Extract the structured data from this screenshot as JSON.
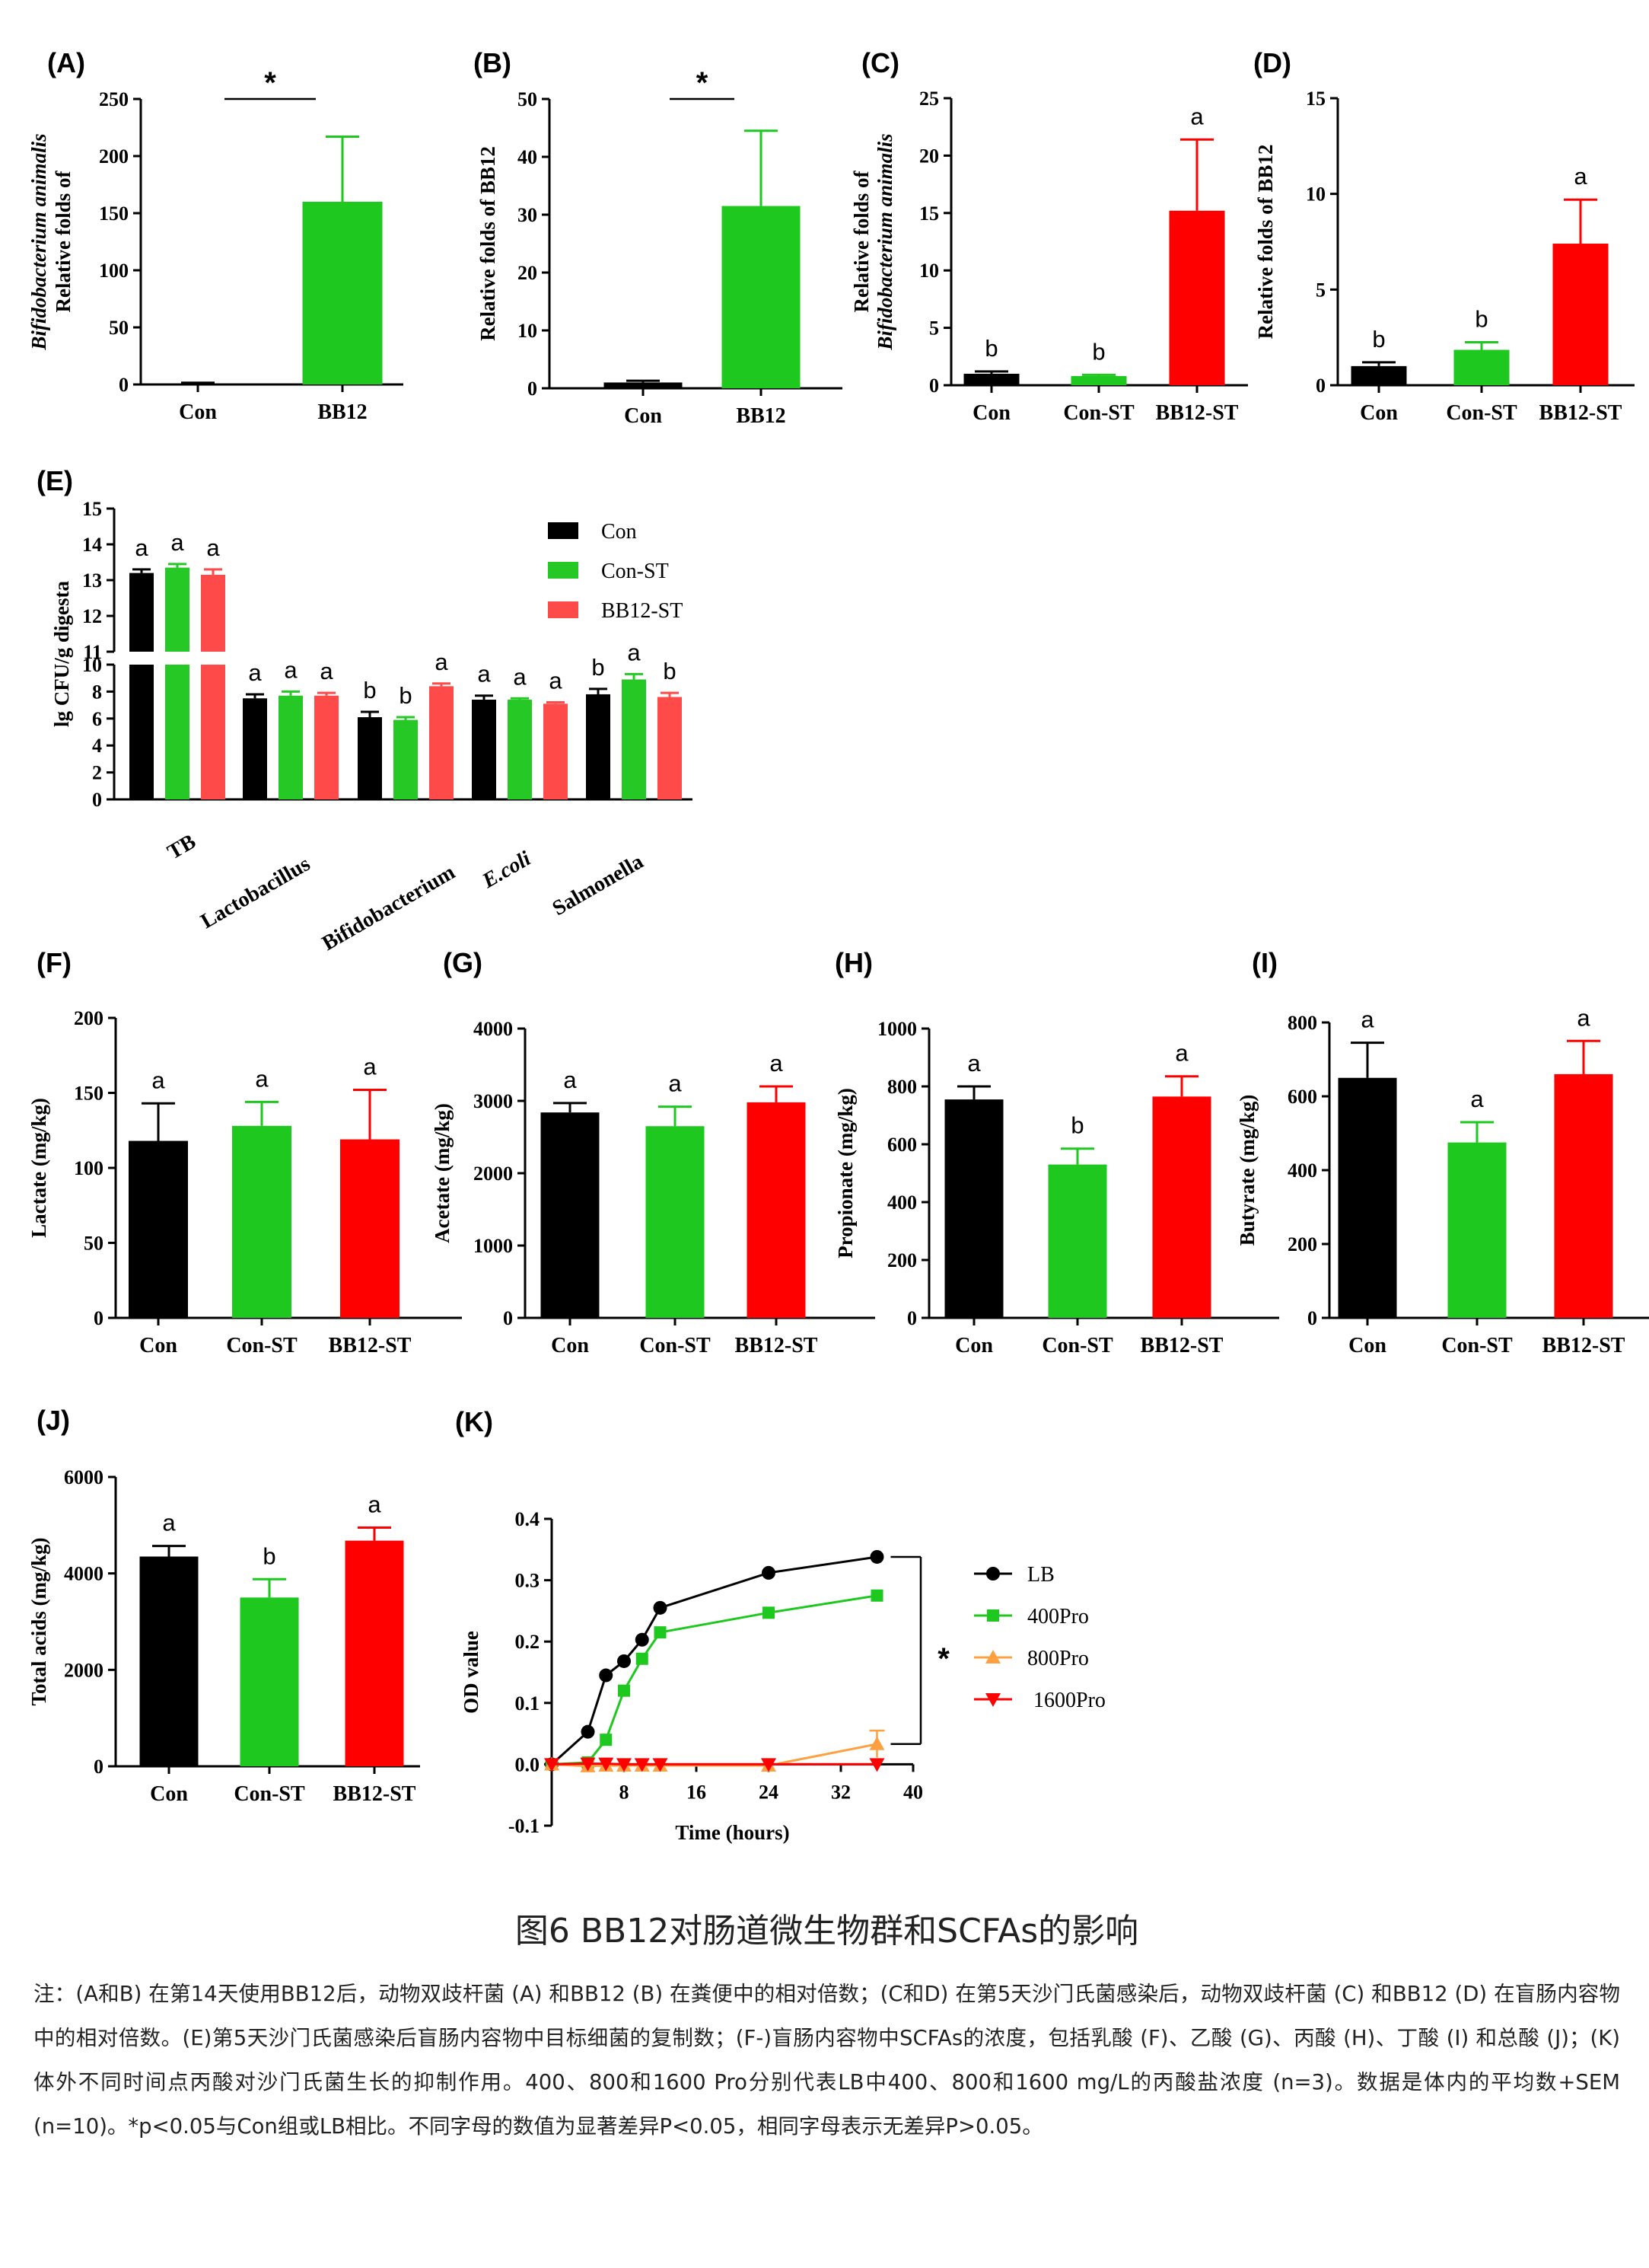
{
  "caption": {
    "title": "图6 BB12对肠道微生物群和SCFAs的影响",
    "note": "注：(A和B) 在第14天使用BB12后，动物双歧杆菌 (A) 和BB12 (B) 在粪便中的相对倍数；(C和D) 在第5天沙门氏菌感染后，动物双歧杆菌 (C) 和BB12 (D) 在盲肠内容物中的相对倍数。(E)第5天沙门氏菌感染后盲肠内容物中目标细菌的复制数；(F-)盲肠内容物中SCFAs的浓度，包括乳酸 (F)、乙酸 (G)、丙酸 (H)、丁酸 (I) 和总酸 (J)；(K) 体外不同时间点丙酸对沙门氏菌生长的抑制作用。400、800和1600 Pro分别代表LB中400、800和1600 mg/L的丙酸盐浓度 (n=3)。数据是体内的平均数+SEM (n=10)。*p<0.05与Con组或LB相比。不同字母的数值为显著差异P<0.05，相同字母表示无差异P>0.05。"
  },
  "colors": {
    "Con": "#000000",
    "Con-ST": "#1ec81e",
    "BB12-ST": "#ff0000",
    "BB12": "#1ec81e",
    "Con-ST-light": "#26c826",
    "BB12-ST-light": "#ff4a4a",
    "400Pro": "#1ec81e",
    "800Pro": "#ffa040",
    "1600Pro": "#ff0000",
    "LB": "#000000"
  },
  "chart_data": [
    {
      "id": "A",
      "label": "(A)",
      "type": "bar",
      "categories": [
        "Con",
        "BB12"
      ],
      "values": [
        1,
        160
      ],
      "errors": [
        0.5,
        57
      ],
      "ylim": [
        0,
        250
      ],
      "yticks": [
        0,
        50,
        100,
        150,
        200,
        250
      ],
      "ylabel_lines": [
        "Relative folds of",
        "Bifidobacterium animalis"
      ],
      "significance": "*",
      "letters": []
    },
    {
      "id": "B",
      "label": "(B)",
      "type": "bar",
      "categories": [
        "Con",
        "BB12"
      ],
      "values": [
        1,
        31.5
      ],
      "errors": [
        0.3,
        13
      ],
      "ylim": [
        0,
        50
      ],
      "yticks": [
        0,
        10,
        20,
        30,
        40,
        50
      ],
      "ylabel_lines": [
        "Relative  folds of BB12"
      ],
      "significance": "*",
      "letters": []
    },
    {
      "id": "C",
      "label": "(C)",
      "type": "bar",
      "categories": [
        "Con",
        "Con-ST",
        "BB12-ST"
      ],
      "values": [
        1,
        0.8,
        15.2
      ],
      "errors": [
        0.2,
        0.1,
        6.2
      ],
      "ylim": [
        0,
        25
      ],
      "yticks": [
        0,
        5,
        10,
        15,
        20,
        25
      ],
      "ylabel_lines": [
        "Relative   folds of",
        "Bifidobacterium animalis"
      ],
      "letters": [
        "b",
        "b",
        "a"
      ]
    },
    {
      "id": "D",
      "label": "(D)",
      "type": "bar",
      "categories": [
        "Con",
        "Con-ST",
        "BB12-ST"
      ],
      "values": [
        1,
        1.85,
        7.4
      ],
      "errors": [
        0.2,
        0.4,
        2.3
      ],
      "ylim": [
        0,
        15
      ],
      "yticks": [
        0,
        5,
        10,
        15
      ],
      "ylabel_lines": [
        "Relative   folds of BB12"
      ],
      "letters": [
        "b",
        "b",
        "a"
      ]
    },
    {
      "id": "E",
      "label": "(E)",
      "type": "bar",
      "categories": [
        "TB",
        "Lactobacillus",
        "Bifidobacterium",
        "E.coli",
        "Salmonella"
      ],
      "series": [
        {
          "name": "Con",
          "values": [
            13.2,
            7.5,
            6.1,
            7.4,
            7.8
          ],
          "errors": [
            0.1,
            0.3,
            0.4,
            0.3,
            0.4
          ],
          "letters": [
            "a",
            "a",
            "b",
            "a",
            "b"
          ]
        },
        {
          "name": "Con-ST",
          "values": [
            13.35,
            7.7,
            5.9,
            7.4,
            8.9
          ],
          "errors": [
            0.1,
            0.3,
            0.2,
            0.1,
            0.4
          ],
          "letters": [
            "a",
            "a",
            "b",
            "a",
            "a"
          ]
        },
        {
          "name": "BB12-ST",
          "values": [
            13.15,
            7.7,
            8.4,
            7.1,
            7.6
          ],
          "errors": [
            0.15,
            0.2,
            0.2,
            0.1,
            0.3
          ],
          "letters": [
            "a",
            "a",
            "a",
            "a",
            "b"
          ]
        }
      ],
      "ylabel": "lg CFU/g digesta",
      "ybreak": [
        10,
        11
      ],
      "ylim": [
        0,
        15
      ],
      "yticks_lower": [
        0,
        2,
        4,
        6,
        8,
        10
      ],
      "yticks_upper": [
        11,
        12,
        13,
        14,
        15
      ]
    },
    {
      "id": "F",
      "label": "(F)",
      "type": "bar",
      "categories": [
        "Con",
        "Con-ST",
        "BB12-ST"
      ],
      "values": [
        118,
        128,
        119
      ],
      "errors": [
        25,
        16,
        33
      ],
      "ylim": [
        0,
        200
      ],
      "yticks": [
        0,
        50,
        100,
        150,
        200
      ],
      "ylabel_lines": [
        "Lactate (mg/kg)"
      ],
      "letters": [
        "a",
        "a",
        "a"
      ]
    },
    {
      "id": "G",
      "label": "(G)",
      "type": "bar",
      "categories": [
        "Con",
        "Con-ST",
        "BB12-ST"
      ],
      "values": [
        2840,
        2650,
        2980
      ],
      "errors": [
        130,
        270,
        220
      ],
      "ylim": [
        0,
        4000
      ],
      "yticks": [
        0,
        1000,
        2000,
        3000,
        4000
      ],
      "ylabel_lines": [
        "Acetate (mg/kg)"
      ],
      "letters": [
        "a",
        "a",
        "a"
      ]
    },
    {
      "id": "H",
      "label": "(H)",
      "type": "bar",
      "categories": [
        "Con",
        "Con-ST",
        "BB12-ST"
      ],
      "values": [
        755,
        530,
        765
      ],
      "errors": [
        45,
        55,
        70
      ],
      "ylim": [
        0,
        1000
      ],
      "yticks": [
        0,
        200,
        400,
        600,
        800,
        1000
      ],
      "ylabel_lines": [
        "Propionate (mg/kg)"
      ],
      "letters": [
        "a",
        "b",
        "a"
      ]
    },
    {
      "id": "I",
      "label": "(I)",
      "type": "bar",
      "categories": [
        "Con",
        "Con-ST",
        "BB12-ST"
      ],
      "values": [
        650,
        475,
        660
      ],
      "errors": [
        95,
        55,
        90
      ],
      "ylim": [
        0,
        800
      ],
      "yticks": [
        0,
        200,
        400,
        600,
        800
      ],
      "ylabel_lines": [
        "Butyrate (mg/kg)"
      ],
      "letters": [
        "a",
        "a",
        "a"
      ]
    },
    {
      "id": "J",
      "label": "(J)",
      "type": "bar",
      "categories": [
        "Con",
        "Con-ST",
        "BB12-ST"
      ],
      "values": [
        4350,
        3500,
        4680
      ],
      "errors": [
        220,
        380,
        270
      ],
      "ylim": [
        0,
        6000
      ],
      "yticks": [
        0,
        2000,
        4000,
        6000
      ],
      "ylabel_lines": [
        "Total acids (mg/kg)"
      ],
      "letters": [
        "a",
        "b",
        "a"
      ]
    },
    {
      "id": "K",
      "label": "(K)",
      "type": "line",
      "xlabel": "Time (hours)",
      "ylabel": "OD value",
      "xlim": [
        0,
        40
      ],
      "ylim": [
        -0.1,
        0.4
      ],
      "xticks": [
        8,
        16,
        24,
        32,
        40
      ],
      "yticks": [
        -0.1,
        0.0,
        0.1,
        0.2,
        0.3,
        0.4
      ],
      "significance": "*",
      "series": [
        {
          "name": "LB",
          "marker": "circle",
          "x": [
            0,
            4,
            6,
            8,
            10,
            12,
            24,
            36
          ],
          "y": [
            0,
            0.053,
            0.145,
            0.168,
            0.203,
            0.255,
            0.312,
            0.338
          ],
          "errors": [
            0,
            0,
            0,
            0,
            0,
            0,
            0,
            0
          ]
        },
        {
          "name": "400Pro",
          "marker": "square",
          "x": [
            0,
            4,
            6,
            8,
            10,
            12,
            24,
            36
          ],
          "y": [
            0,
            0.003,
            0.04,
            0.12,
            0.172,
            0.215,
            0.247,
            0.275
          ],
          "errors": [
            0,
            0,
            0,
            0,
            0,
            0,
            0,
            0
          ]
        },
        {
          "name": "800Pro",
          "marker": "triangle-up",
          "x": [
            0,
            4,
            6,
            8,
            10,
            12,
            24,
            36
          ],
          "y": [
            0,
            -0.003,
            -0.002,
            -0.002,
            -0.002,
            -0.002,
            -0.002,
            0.033
          ],
          "errors": [
            0,
            0,
            0,
            0,
            0,
            0,
            0,
            0.022
          ]
        },
        {
          "name": "1600Pro",
          "marker": "triangle-down",
          "x": [
            0,
            4,
            6,
            8,
            10,
            12,
            24,
            36
          ],
          "y": [
            0,
            0.001,
            0.001,
            0,
            0,
            0,
            0,
            0
          ],
          "errors": [
            0,
            0,
            0,
            0,
            0,
            0,
            0,
            0
          ]
        }
      ]
    }
  ]
}
